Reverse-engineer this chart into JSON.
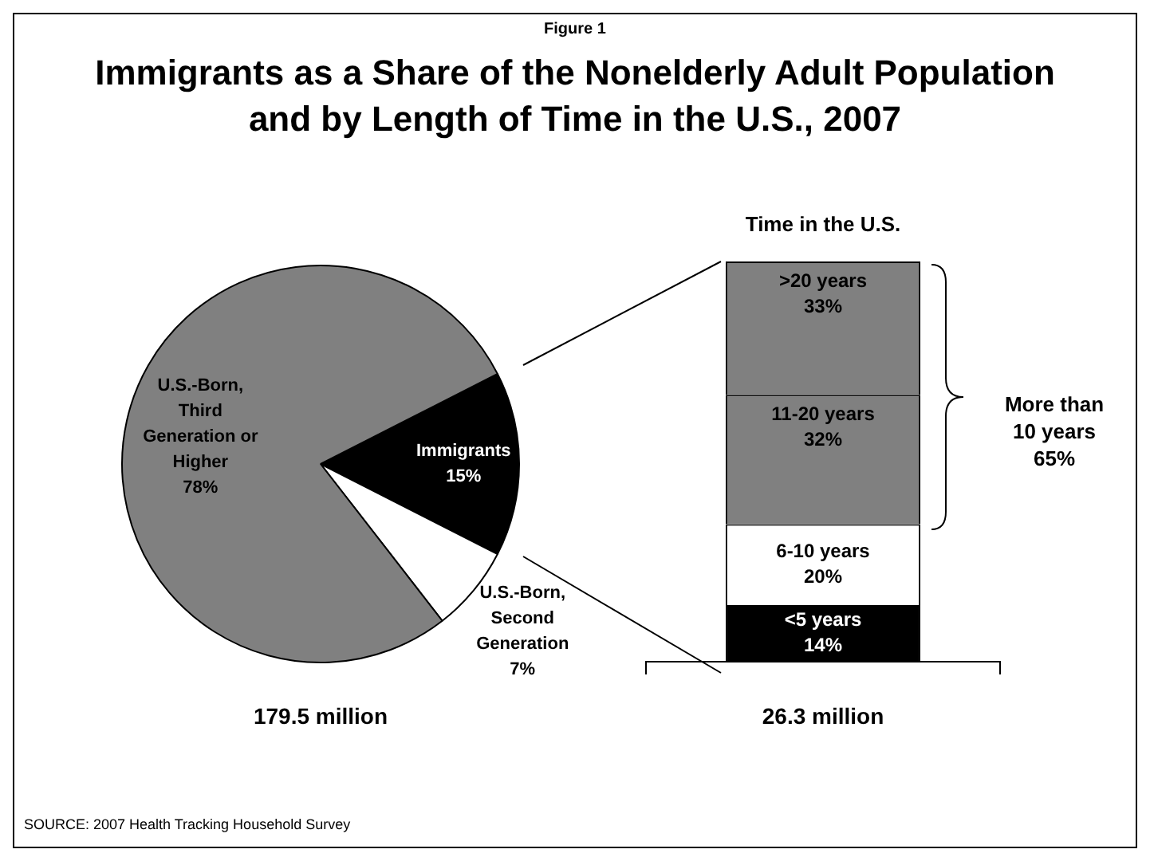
{
  "chart_data": [
    {
      "type": "pie",
      "title": "Immigrants as a Share of the Nonelderly Adult Population and by Length of Time in the U.S., 2007",
      "xlabel": "179.5 million",
      "annotations": [
        "Figure 1",
        "SOURCE: 2007 Health Tracking Household Survey"
      ],
      "categories": [
        "Immigrants",
        "U.S.-Born, Second Generation",
        "U.S.-Born, Third Generation or Higher"
      ],
      "values": [
        15,
        7,
        78
      ],
      "colors": [
        "#000000",
        "#ffffff",
        "#808080"
      ],
      "value_labels": [
        "15%",
        "7%",
        "78%"
      ]
    },
    {
      "type": "bar",
      "title": "Time in the U.S.",
      "xlabel": "26.3 million",
      "annotations": [
        "More than 10 years 65%"
      ],
      "stacked": true,
      "tick_labels": false,
      "categories": [
        null
      ],
      "series": [
        {
          "name": "<5 years",
          "color": "#000000",
          "values": [
            14
          ],
          "value_labels": [
            "14%"
          ]
        },
        {
          "name": "6-10 years",
          "color": "#ffffff",
          "values": [
            20
          ],
          "value_labels": [
            "20%"
          ]
        },
        {
          "name": "11-20 years",
          "color": "#808080",
          "values": [
            32
          ],
          "value_labels": [
            "32%"
          ]
        },
        {
          "name": ">20 years",
          "color": "#808080",
          "values": [
            33
          ],
          "value_labels": [
            "33%"
          ]
        }
      ]
    }
  ]
}
